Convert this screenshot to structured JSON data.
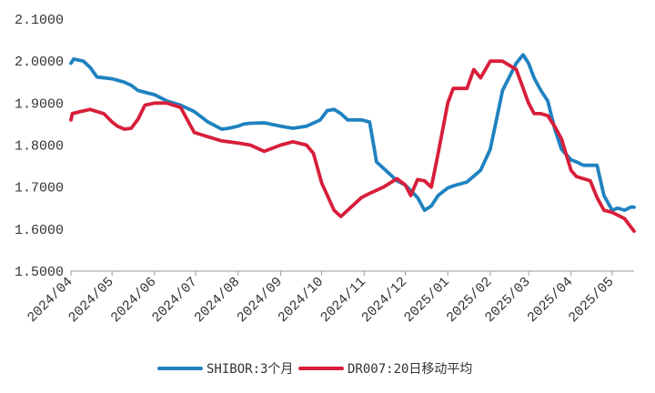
{
  "chart_data": {
    "type": "line",
    "title": "",
    "xlabel": "",
    "ylabel": "",
    "ylim": [
      1.5,
      2.1
    ],
    "y_ticks": [
      "2.1000",
      "2.0000",
      "1.9000",
      "1.8000",
      "1.7000",
      "1.6000",
      "1.5000"
    ],
    "x_tick_labels": [
      "2024/04",
      "2024/05",
      "2024/06",
      "2024/07",
      "2024/08",
      "2024/09",
      "2024/10",
      "2024/11",
      "2024/12",
      "2025/01",
      "2025/02",
      "2025/03",
      "2025/04",
      "2025/05"
    ],
    "grid": false,
    "legend_position": "bottom",
    "series": [
      {
        "name": "SHIBOR:3个月",
        "color": "#1f82c0",
        "x": [
          "2024-04-01",
          "2024-04-03",
          "2024-04-10",
          "2024-04-15",
          "2024-04-20",
          "2024-05-01",
          "2024-05-10",
          "2024-05-15",
          "2024-05-20",
          "2024-06-01",
          "2024-06-10",
          "2024-06-20",
          "2024-06-30",
          "2024-07-10",
          "2024-07-20",
          "2024-07-25",
          "2024-08-01",
          "2024-08-05",
          "2024-08-10",
          "2024-08-20",
          "2024-09-01",
          "2024-09-10",
          "2024-09-20",
          "2024-09-30",
          "2024-10-05",
          "2024-10-10",
          "2024-10-15",
          "2024-10-20",
          "2024-10-30",
          "2024-11-05",
          "2024-11-10",
          "2024-11-15",
          "2024-11-25",
          "2024-12-01",
          "2024-12-10",
          "2024-12-15",
          "2024-12-20",
          "2024-12-25",
          "2025-01-01",
          "2025-01-05",
          "2025-01-15",
          "2025-01-25",
          "2025-02-01",
          "2025-02-10",
          "2025-02-20",
          "2025-02-25",
          "2025-03-01",
          "2025-03-05",
          "2025-03-10",
          "2025-03-15",
          "2025-03-20",
          "2025-03-25",
          "2025-04-01",
          "2025-04-05",
          "2025-04-10",
          "2025-04-15",
          "2025-04-20",
          "2025-04-25",
          "2025-05-01",
          "2025-05-05",
          "2025-05-10",
          "2025-05-15",
          "2025-05-17"
        ],
        "values": [
          1.995,
          2.005,
          2.0,
          1.985,
          1.962,
          1.958,
          1.95,
          1.942,
          1.93,
          1.92,
          1.905,
          1.895,
          1.88,
          1.855,
          1.838,
          1.84,
          1.845,
          1.85,
          1.852,
          1.853,
          1.845,
          1.84,
          1.845,
          1.86,
          1.882,
          1.885,
          1.875,
          1.86,
          1.86,
          1.855,
          1.76,
          1.745,
          1.715,
          1.705,
          1.675,
          1.645,
          1.655,
          1.68,
          1.698,
          1.703,
          1.712,
          1.74,
          1.79,
          1.93,
          1.995,
          2.015,
          1.995,
          1.96,
          1.93,
          1.905,
          1.84,
          1.79,
          1.765,
          1.76,
          1.752,
          1.752,
          1.752,
          1.68,
          1.645,
          1.65,
          1.645,
          1.653,
          1.652
        ]
      },
      {
        "name": "DR007:20日移动平均",
        "color": "#d81e3a",
        "x": [
          "2024-04-01",
          "2024-04-02",
          "2024-04-08",
          "2024-04-15",
          "2024-04-25",
          "2024-05-01",
          "2024-05-05",
          "2024-05-10",
          "2024-05-15",
          "2024-05-20",
          "2024-05-25",
          "2024-06-01",
          "2024-06-05",
          "2024-06-10",
          "2024-06-20",
          "2024-06-30",
          "2024-07-05",
          "2024-07-10",
          "2024-07-20",
          "2024-08-01",
          "2024-08-10",
          "2024-08-20",
          "2024-09-01",
          "2024-09-10",
          "2024-09-20",
          "2024-09-25",
          "2024-10-01",
          "2024-10-10",
          "2024-10-15",
          "2024-10-20",
          "2024-10-30",
          "2024-11-05",
          "2024-11-15",
          "2024-11-25",
          "2024-12-01",
          "2024-12-05",
          "2024-12-10",
          "2024-12-15",
          "2024-12-20",
          "2024-12-25",
          "2025-01-01",
          "2025-01-05",
          "2025-01-15",
          "2025-01-20",
          "2025-01-25",
          "2025-02-01",
          "2025-02-10",
          "2025-02-20",
          "2025-03-01",
          "2025-03-05",
          "2025-03-10",
          "2025-03-15",
          "2025-03-20",
          "2025-03-25",
          "2025-04-01",
          "2025-04-05",
          "2025-04-10",
          "2025-04-15",
          "2025-04-20",
          "2025-04-25",
          "2025-05-01",
          "2025-05-10",
          "2025-05-17"
        ],
        "values": [
          1.86,
          1.875,
          1.88,
          1.885,
          1.875,
          1.855,
          1.845,
          1.838,
          1.84,
          1.862,
          1.895,
          1.9,
          1.9,
          1.9,
          1.89,
          1.83,
          1.825,
          1.82,
          1.81,
          1.805,
          1.8,
          1.785,
          1.8,
          1.808,
          1.8,
          1.78,
          1.71,
          1.645,
          1.63,
          1.645,
          1.675,
          1.685,
          1.7,
          1.72,
          1.705,
          1.68,
          1.718,
          1.715,
          1.7,
          1.78,
          1.9,
          1.935,
          1.935,
          1.98,
          1.96,
          2.0,
          2.0,
          1.98,
          1.9,
          1.875,
          1.875,
          1.87,
          1.845,
          1.815,
          1.74,
          1.725,
          1.72,
          1.715,
          1.675,
          1.645,
          1.64,
          1.625,
          1.595
        ]
      }
    ]
  }
}
